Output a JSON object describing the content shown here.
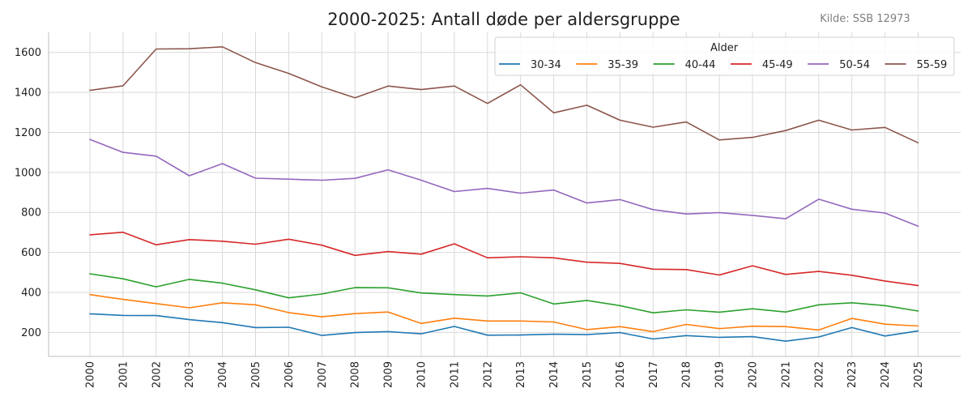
{
  "chart_data": {
    "type": "line",
    "title": "2000-2025: Antall døde per aldersgruppe",
    "source": "Kilde: SSB 12973",
    "xlabel": "",
    "ylabel": "",
    "x": [
      "2000",
      "2001",
      "2002",
      "2003",
      "2004",
      "2005",
      "2006",
      "2007",
      "2008",
      "2009",
      "2010",
      "2011",
      "2012",
      "2013",
      "2014",
      "2015",
      "2016",
      "2017",
      "2018",
      "2019",
      "2020",
      "2021",
      "2022",
      "2023",
      "2024",
      "2025"
    ],
    "ylim": [
      80,
      1700
    ],
    "yticks": [
      200,
      400,
      600,
      800,
      1000,
      1200,
      1400,
      1600
    ],
    "grid": true,
    "legend": {
      "title": "Alder",
      "placement": "top-right"
    },
    "series": [
      {
        "name": "30-34",
        "color": "#1f77b4",
        "values": [
          293,
          285,
          284,
          264,
          249,
          224,
          226,
          185,
          199,
          204,
          193,
          230,
          186,
          187,
          191,
          189,
          199,
          167,
          184,
          175,
          179,
          156,
          177,
          224,
          182,
          207
        ]
      },
      {
        "name": "35-39",
        "color": "#ff7f0e",
        "values": [
          389,
          365,
          344,
          323,
          348,
          338,
          299,
          278,
          294,
          302,
          245,
          271,
          257,
          257,
          252,
          214,
          229,
          204,
          240,
          219,
          231,
          229,
          212,
          270,
          241,
          232
        ]
      },
      {
        "name": "40-44",
        "color": "#2ca02c",
        "values": [
          493,
          468,
          428,
          465,
          446,
          413,
          373,
          392,
          424,
          423,
          397,
          389,
          382,
          398,
          342,
          360,
          334,
          298,
          313,
          301,
          318,
          302,
          338,
          348,
          334,
          307
        ]
      },
      {
        "name": "45-49",
        "color": "#d62728",
        "values": [
          688,
          701,
          638,
          664,
          656,
          641,
          666,
          636,
          585,
          604,
          591,
          643,
          573,
          578,
          573,
          551,
          545,
          516,
          514,
          487,
          533,
          490,
          505,
          486,
          457,
          434
        ]
      },
      {
        "name": "50-54",
        "color": "#9467bd",
        "values": [
          1165,
          1100,
          1081,
          983,
          1044,
          971,
          966,
          961,
          970,
          1013,
          961,
          904,
          920,
          896,
          912,
          847,
          864,
          814,
          792,
          799,
          785,
          768,
          866,
          816,
          797,
          731
        ]
      },
      {
        "name": "55-59",
        "color": "#8c564b",
        "values": [
          1410,
          1433,
          1617,
          1618,
          1628,
          1549,
          1495,
          1428,
          1373,
          1432,
          1414,
          1432,
          1345,
          1438,
          1298,
          1336,
          1261,
          1226,
          1252,
          1162,
          1175,
          1209,
          1261,
          1212,
          1225,
          1148
        ]
      }
    ]
  }
}
